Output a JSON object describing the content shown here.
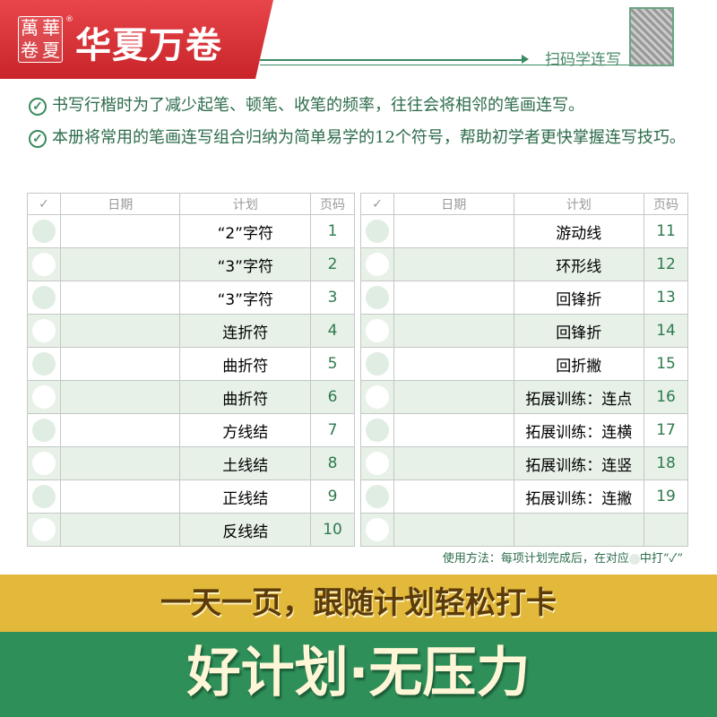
{
  "header": {
    "logo_seal": [
      "華",
      "萬",
      "夏",
      "卷"
    ],
    "registered_mark": "®",
    "brand": "华夏万卷",
    "scan_label": "扫码学连写"
  },
  "intro": {
    "check_icon": "check-circle-icon",
    "items": [
      "书写行楷时为了减少起笔、顿笔、收笔的频率，往往会将相邻的笔画连写。",
      "本册将常用的笔画连写组合归纳为简单易学的12个符号，帮助初学者更快掌握连写技巧。"
    ]
  },
  "table": {
    "headers": {
      "check": "✓",
      "date": "日期",
      "plan": "计划",
      "page": "页码"
    },
    "left": [
      {
        "plan": "“2”字符",
        "page": "1"
      },
      {
        "plan": "“3”字符",
        "page": "2"
      },
      {
        "plan": "“3”字符",
        "page": "3"
      },
      {
        "plan": "连折符",
        "page": "4"
      },
      {
        "plan": "曲折符",
        "page": "5"
      },
      {
        "plan": "曲折符",
        "page": "6"
      },
      {
        "plan": "方线结",
        "page": "7"
      },
      {
        "plan": "土线结",
        "page": "8"
      },
      {
        "plan": "正线结",
        "page": "9"
      },
      {
        "plan": "反线结",
        "page": "10"
      }
    ],
    "right": [
      {
        "plan": "游动线",
        "page": "11"
      },
      {
        "plan": "环形线",
        "page": "12"
      },
      {
        "plan": "回锋折",
        "page": "13"
      },
      {
        "plan": "回锋折",
        "page": "14"
      },
      {
        "plan": "回折撇",
        "page": "15"
      },
      {
        "plan": "拓展训练：连点",
        "page": "16"
      },
      {
        "plan": "拓展训练：连横",
        "page": "17"
      },
      {
        "plan": "拓展训练：连竖",
        "page": "18"
      },
      {
        "plan": "拓展训练：连撇",
        "page": "19"
      },
      {
        "plan": "",
        "page": ""
      }
    ]
  },
  "note": {
    "before": "使用方法：每项计划完成后，在对应",
    "after": "中打“✓”"
  },
  "slogan": "一天一页，跟随计划轻松打卡",
  "headline": "好计划·无压力",
  "colors": {
    "brand_red": "#d8323a",
    "green": "#2f8f59",
    "yellow": "#e3b93c"
  }
}
